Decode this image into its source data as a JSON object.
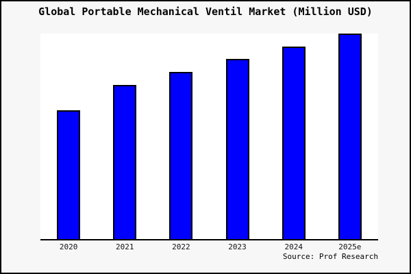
{
  "frame": {
    "background": "#f7f7f7",
    "border_color": "#000000"
  },
  "chart_data": {
    "type": "bar",
    "title": "Global Portable Mechanical Ventil Market (Million USD)",
    "categories": [
      "2020",
      "2021",
      "2022",
      "2023",
      "2024",
      "2025e"
    ],
    "values": [
      62.7,
      75.0,
      81.3,
      87.7,
      93.7,
      100.0
    ],
    "values_note": "No y-axis, gridlines or data labels are shown; values are bar heights as a percent of the tallest (2025e) bar",
    "xlabel": "",
    "ylabel": "",
    "ylim": [
      0,
      100
    ],
    "grid": false,
    "legend": false,
    "bar_color": "#0000ff",
    "bar_border_color": "#000000",
    "plot_background": "#ffffff",
    "axis_line_color": "#000000",
    "source_label": "Source: Prof Research"
  }
}
